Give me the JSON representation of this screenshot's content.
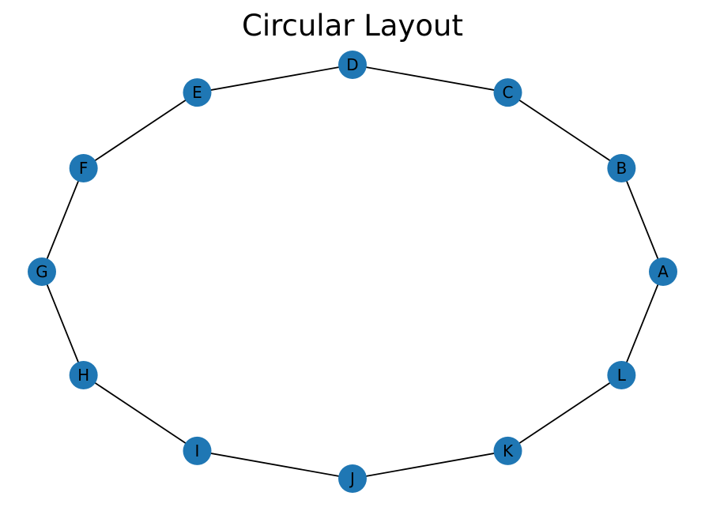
{
  "title": "Circular Layout",
  "layout": "circular",
  "colors": {
    "node_fill": "#1f77b4",
    "edge_stroke": "#000000",
    "label_text": "#000000",
    "background": "#ffffff"
  },
  "nodes": [
    {
      "id": "A",
      "label": "A"
    },
    {
      "id": "B",
      "label": "B"
    },
    {
      "id": "C",
      "label": "C"
    },
    {
      "id": "D",
      "label": "D"
    },
    {
      "id": "E",
      "label": "E"
    },
    {
      "id": "F",
      "label": "F"
    },
    {
      "id": "G",
      "label": "G"
    },
    {
      "id": "H",
      "label": "H"
    },
    {
      "id": "I",
      "label": "I"
    },
    {
      "id": "J",
      "label": "J"
    },
    {
      "id": "K",
      "label": "K"
    },
    {
      "id": "L",
      "label": "L"
    }
  ],
  "edges": [
    [
      "A",
      "B"
    ],
    [
      "B",
      "C"
    ],
    [
      "C",
      "D"
    ],
    [
      "D",
      "E"
    ],
    [
      "E",
      "F"
    ],
    [
      "F",
      "G"
    ],
    [
      "G",
      "H"
    ],
    [
      "H",
      "I"
    ],
    [
      "I",
      "J"
    ],
    [
      "J",
      "K"
    ],
    [
      "K",
      "L"
    ],
    [
      "L",
      "A"
    ]
  ]
}
